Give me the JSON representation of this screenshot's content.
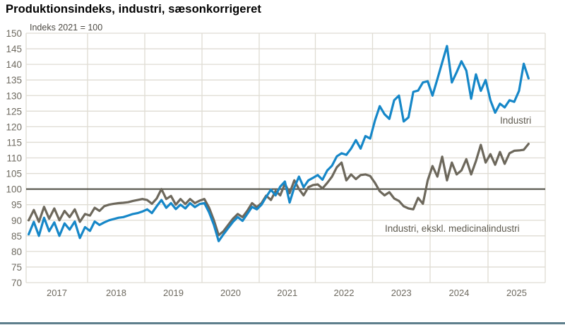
{
  "header": {
    "title": "Produktionsindeks, industri, sæsonkorrigeret",
    "unit_label": "Indeks 2021 = 100"
  },
  "footer": {
    "bar_color": "#5e7f8c"
  },
  "chart_data": {
    "type": "line",
    "title": "Produktionsindeks, industri, sæsonkorrigeret",
    "subtitle": "Indeks 2021 = 100",
    "frequency": "monthly",
    "start": "2017-01",
    "end": "2025-09",
    "x_years": [
      "2017",
      "2018",
      "2019",
      "2020",
      "2021",
      "2022",
      "2023",
      "2024",
      "2025"
    ],
    "ylim": [
      70,
      150
    ],
    "ytick_step": 5,
    "baseline_value": 100,
    "grid": true,
    "legend_position": "inline-annotations",
    "colors": {
      "industri": "#1687c8",
      "ekskl_medicinal": "#6d685c",
      "baseline_line": "#4a493f",
      "gridline": "#dfdcd3",
      "tick_text": "#6e6a60"
    },
    "series": [
      {
        "name": "Industri",
        "color": "#1687c8",
        "values": [
          85.5,
          89.5,
          85.0,
          90.8,
          86.5,
          89.3,
          85.0,
          89.0,
          87.0,
          89.6,
          84.3,
          87.8,
          86.6,
          89.6,
          88.5,
          89.3,
          90.0,
          90.4,
          90.8,
          91.0,
          91.5,
          92.0,
          92.3,
          92.8,
          93.5,
          92.3,
          94.5,
          96.5,
          94.0,
          95.5,
          93.6,
          95.0,
          93.8,
          95.5,
          94.2,
          95.2,
          95.5,
          92.5,
          88.5,
          83.3,
          85.5,
          87.5,
          89.5,
          91.0,
          89.8,
          92.0,
          94.3,
          93.5,
          95.0,
          97.5,
          99.8,
          98.0,
          100.8,
          102.4,
          95.7,
          100.5,
          104.0,
          100.6,
          102.8,
          103.6,
          104.5,
          103.0,
          106.0,
          107.5,
          110.5,
          111.5,
          111.0,
          113.0,
          115.7,
          113.0,
          117.0,
          116.2,
          122.0,
          126.6,
          124.0,
          122.5,
          128.5,
          130.0,
          121.7,
          123.0,
          131.2,
          131.6,
          134.2,
          134.6,
          130.0,
          135.3,
          140.6,
          145.9,
          134.2,
          137.5,
          141.0,
          138.0,
          129.0,
          136.8,
          131.5,
          135.0,
          128.5,
          124.5,
          127.4,
          126.2,
          128.5,
          128.0,
          131.5,
          140.2,
          135.5
        ]
      },
      {
        "name": "Industri, ekskl. medicinalindustri",
        "color": "#6d685c",
        "values": [
          90.0,
          93.3,
          89.5,
          94.3,
          90.5,
          93.8,
          90.0,
          93.0,
          91.0,
          93.5,
          89.5,
          92.0,
          91.5,
          94.0,
          93.0,
          94.5,
          95.0,
          95.3,
          95.5,
          95.6,
          95.8,
          96.2,
          96.5,
          96.8,
          96.5,
          95.3,
          97.0,
          100.0,
          96.8,
          97.8,
          95.0,
          96.8,
          95.2,
          96.8,
          95.5,
          96.3,
          96.8,
          94.0,
          90.0,
          85.2,
          86.5,
          88.5,
          90.5,
          92.0,
          91.0,
          93.0,
          95.5,
          94.2,
          95.5,
          97.9,
          96.5,
          99.4,
          98.0,
          101.7,
          98.7,
          102.8,
          100.0,
          98.0,
          100.6,
          101.3,
          101.5,
          100.2,
          102.0,
          104.0,
          107.0,
          108.5,
          102.8,
          104.7,
          103.2,
          104.5,
          104.7,
          104.2,
          102.0,
          99.3,
          98.0,
          99.0,
          97.0,
          96.2,
          94.5,
          93.8,
          93.5,
          97.2,
          95.3,
          102.8,
          107.4,
          104.0,
          110.4,
          102.8,
          108.5,
          104.7,
          106.0,
          109.6,
          104.7,
          109.0,
          114.2,
          108.5,
          111.2,
          107.8,
          111.9,
          108.1,
          111.5,
          112.3,
          112.4,
          112.6,
          114.5
        ]
      }
    ],
    "annotations": [
      {
        "text": "Industri"
      },
      {
        "text": "Industri, ekskl. medicinalindustri"
      }
    ]
  }
}
